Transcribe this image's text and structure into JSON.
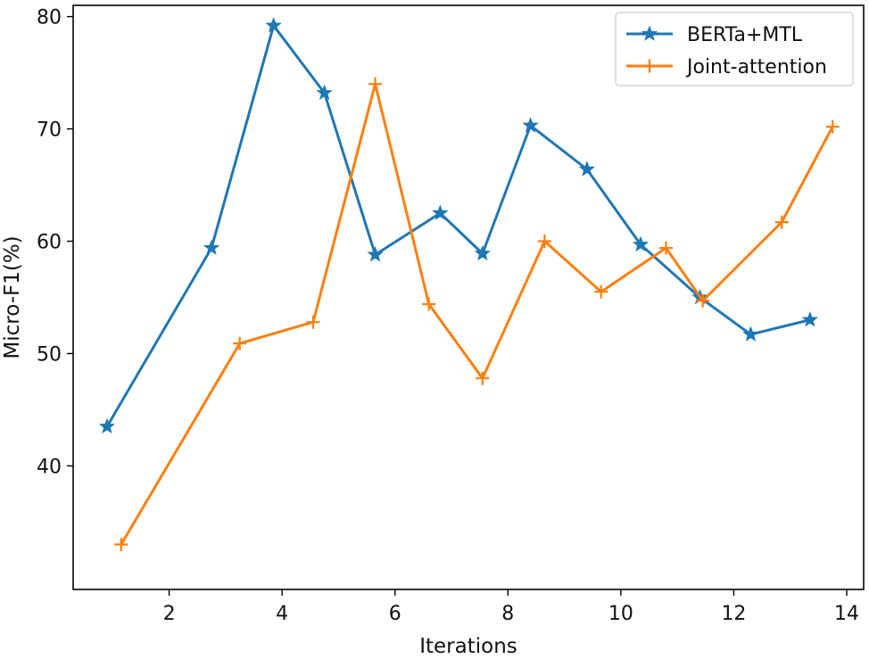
{
  "chart_data": {
    "type": "line",
    "title": "",
    "xlabel": "Iterations",
    "ylabel": "Micro-F1(%)",
    "xlim": [
      0.3,
      14.3
    ],
    "ylim": [
      29,
      81
    ],
    "xticks": [
      2,
      4,
      6,
      8,
      10,
      12,
      14
    ],
    "yticks": [
      40,
      50,
      60,
      70,
      80
    ],
    "grid": false,
    "legend_position": "top-right",
    "series": [
      {
        "name": "BERTa+MTL",
        "color": "#1f77b4",
        "marker": "star",
        "x": [
          0.9,
          2.75,
          3.85,
          4.75,
          5.65,
          6.8,
          7.55,
          8.4,
          9.4,
          10.35,
          11.4,
          12.3,
          13.35
        ],
        "y": [
          43.5,
          59.4,
          79.2,
          73.2,
          58.8,
          62.5,
          58.9,
          70.3,
          66.4,
          59.7,
          55.0,
          51.7,
          53.0
        ]
      },
      {
        "name": "Joint-attention",
        "color": "#ff7f0e",
        "marker": "plus",
        "x": [
          1.15,
          3.25,
          4.55,
          5.65,
          6.6,
          7.55,
          8.65,
          9.65,
          10.8,
          11.45,
          12.85,
          13.75
        ],
        "y": [
          33.0,
          50.9,
          52.8,
          74.0,
          54.4,
          47.8,
          60.0,
          55.5,
          59.4,
          54.7,
          61.7,
          70.2
        ]
      }
    ]
  }
}
